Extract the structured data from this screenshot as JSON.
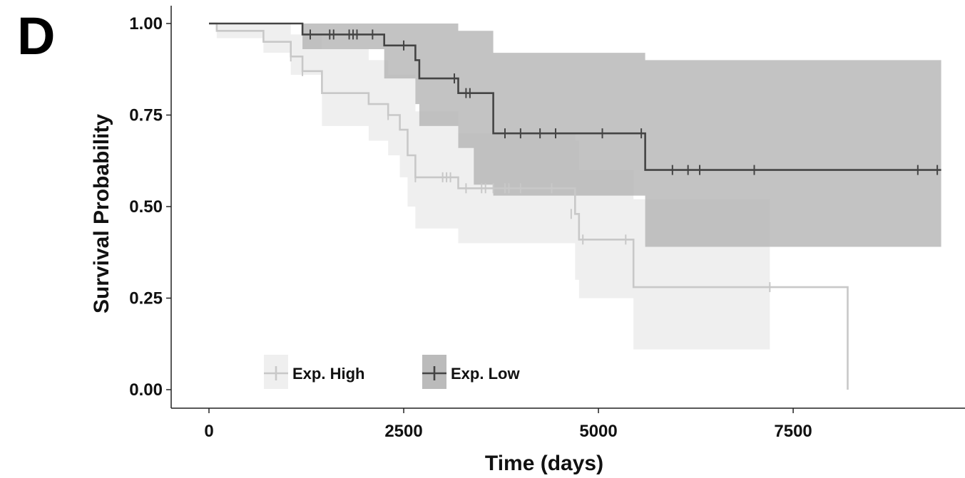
{
  "panel_label": "D",
  "chart_data": {
    "type": "line",
    "subtype": "kaplan-meier",
    "title": "",
    "xlabel": "Time (days)",
    "ylabel": "Survival Probability",
    "xlim": [
      0,
      9500
    ],
    "ylim": [
      0,
      1.0
    ],
    "x_ticks": [
      0,
      2500,
      5000,
      7500
    ],
    "x_tick_labels": [
      "0",
      "2500",
      "5000",
      "7500"
    ],
    "y_ticks": [
      0,
      0.25,
      0.5,
      0.75,
      1.0
    ],
    "y_tick_labels": [
      "0.00",
      "0.25",
      "0.50",
      "0.75",
      "1.00"
    ],
    "grid": false,
    "legend_position": "bottom-left",
    "series": [
      {
        "name": "Exp. High",
        "line_color": "#c8c8c8",
        "band_color": "#eeeeee",
        "steps": [
          [
            0,
            1.0
          ],
          [
            100,
            0.98
          ],
          [
            700,
            0.95
          ],
          [
            1050,
            0.91
          ],
          [
            1200,
            0.87
          ],
          [
            1450,
            0.81
          ],
          [
            2050,
            0.78
          ],
          [
            2300,
            0.75
          ],
          [
            2450,
            0.71
          ],
          [
            2550,
            0.64
          ],
          [
            2650,
            0.58
          ],
          [
            3200,
            0.55
          ],
          [
            4700,
            0.48
          ],
          [
            4750,
            0.41
          ],
          [
            5450,
            0.28
          ],
          [
            8200,
            0.0
          ]
        ],
        "censors": [
          [
            1050,
            0.91
          ],
          [
            1200,
            0.87
          ],
          [
            2300,
            0.75
          ],
          [
            2650,
            0.58
          ],
          [
            3000,
            0.58
          ],
          [
            3050,
            0.58
          ],
          [
            3100,
            0.58
          ],
          [
            3300,
            0.55
          ],
          [
            3500,
            0.55
          ],
          [
            3550,
            0.55
          ],
          [
            3650,
            0.55
          ],
          [
            3800,
            0.55
          ],
          [
            3850,
            0.55
          ],
          [
            4000,
            0.55
          ],
          [
            4400,
            0.55
          ],
          [
            4650,
            0.48
          ],
          [
            4800,
            0.41
          ],
          [
            5350,
            0.41
          ],
          [
            7200,
            0.28
          ]
        ],
        "ci_lower": [
          [
            0,
            1.0
          ],
          [
            100,
            0.96
          ],
          [
            700,
            0.92
          ],
          [
            1050,
            0.86
          ],
          [
            1450,
            0.72
          ],
          [
            2050,
            0.68
          ],
          [
            2300,
            0.64
          ],
          [
            2450,
            0.58
          ],
          [
            2550,
            0.5
          ],
          [
            2650,
            0.44
          ],
          [
            3200,
            0.4
          ],
          [
            4700,
            0.3
          ],
          [
            4750,
            0.25
          ],
          [
            5450,
            0.11
          ],
          [
            7200,
            0.11
          ]
        ],
        "ci_upper": [
          [
            0,
            1.0
          ],
          [
            100,
            1.0
          ],
          [
            700,
            1.0
          ],
          [
            1050,
            0.97
          ],
          [
            1450,
            0.93
          ],
          [
            2050,
            0.9
          ],
          [
            2300,
            0.86
          ],
          [
            2650,
            0.76
          ],
          [
            3200,
            0.7
          ],
          [
            4700,
            0.68
          ],
          [
            4750,
            0.6
          ],
          [
            5450,
            0.52
          ],
          [
            5600,
            0.52
          ],
          [
            7200,
            0.71
          ]
        ]
      },
      {
        "name": "Exp. Low",
        "line_color": "#444444",
        "band_color": "#b4b4b4",
        "steps": [
          [
            0,
            1.0
          ],
          [
            1200,
            0.97
          ],
          [
            2250,
            0.94
          ],
          [
            2650,
            0.9
          ],
          [
            2700,
            0.85
          ],
          [
            3200,
            0.81
          ],
          [
            3650,
            0.7
          ],
          [
            5600,
            0.6
          ],
          [
            9400,
            0.6
          ]
        ],
        "censors": [
          [
            1300,
            0.97
          ],
          [
            1550,
            0.97
          ],
          [
            1600,
            0.97
          ],
          [
            1800,
            0.97
          ],
          [
            1850,
            0.97
          ],
          [
            1900,
            0.97
          ],
          [
            2100,
            0.97
          ],
          [
            2500,
            0.94
          ],
          [
            3150,
            0.85
          ],
          [
            3300,
            0.81
          ],
          [
            3350,
            0.81
          ],
          [
            3800,
            0.7
          ],
          [
            4000,
            0.7
          ],
          [
            4250,
            0.7
          ],
          [
            4450,
            0.7
          ],
          [
            5050,
            0.7
          ],
          [
            5550,
            0.7
          ],
          [
            5950,
            0.6
          ],
          [
            6150,
            0.6
          ],
          [
            6300,
            0.6
          ],
          [
            7000,
            0.6
          ],
          [
            9100,
            0.6
          ],
          [
            9350,
            0.6
          ]
        ],
        "ci_lower": [
          [
            0,
            1.0
          ],
          [
            1200,
            0.93
          ],
          [
            2250,
            0.85
          ],
          [
            2650,
            0.78
          ],
          [
            2700,
            0.72
          ],
          [
            3200,
            0.66
          ],
          [
            3400,
            0.56
          ],
          [
            3650,
            0.53
          ],
          [
            5600,
            0.39
          ],
          [
            9400,
            0.39
          ]
        ],
        "ci_upper": [
          [
            0,
            1.0
          ],
          [
            1200,
            1.0
          ],
          [
            2250,
            1.0
          ],
          [
            3200,
            0.98
          ],
          [
            3650,
            0.92
          ],
          [
            5600,
            0.9
          ],
          [
            9400,
            0.9
          ]
        ]
      }
    ]
  }
}
